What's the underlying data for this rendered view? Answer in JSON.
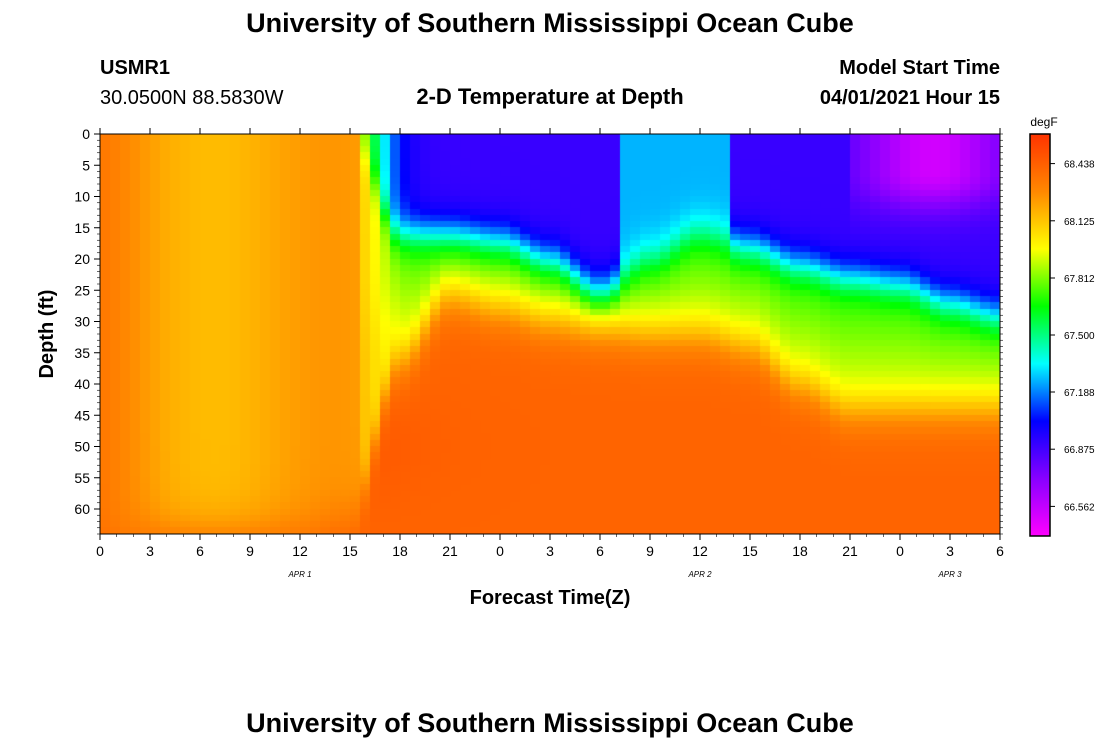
{
  "page": {
    "top_title": "University of Southern Mississippi Ocean Cube",
    "bottom_title": "University of Southern Mississippi Ocean Cube",
    "station_id": "USMR1",
    "station_coords": "30.0500N  88.5830W",
    "plot_title": "2-D Temperature at Depth",
    "model_start_label": "Model Start Time",
    "model_start_value": "04/01/2021 Hour 15"
  },
  "chart_data": {
    "type": "heatmap",
    "title": "2-D Temperature at Depth",
    "xlabel": "Forecast Time(Z)",
    "ylabel": "Depth (ft)",
    "x_range_hours_from_apr1_00z": [
      0,
      54
    ],
    "xlim_hours": [
      0,
      54
    ],
    "x_tick_labels": [
      "0",
      "3",
      "6",
      "9",
      "12",
      "15",
      "18",
      "21",
      "0",
      "3",
      "6",
      "9",
      "12",
      "15",
      "18",
      "21",
      "0",
      "3",
      "6"
    ],
    "date_labels": [
      {
        "text": "APR 1",
        "at_hour": 12
      },
      {
        "text": "APR 2",
        "at_hour": 36
      },
      {
        "text": "APR 3",
        "at_hour": 51
      }
    ],
    "ylim": [
      0,
      64
    ],
    "y_ticks": [
      0,
      5,
      10,
      15,
      20,
      25,
      30,
      35,
      40,
      45,
      50,
      55,
      60
    ],
    "colorbar": {
      "unit": "degF",
      "range": [
        66.4,
        68.6
      ],
      "tick_values": [
        68.438,
        68.125,
        67.812,
        67.5,
        67.188,
        66.875,
        66.562
      ],
      "tick_labels": [
        "68.438",
        "68.125",
        "67.812",
        "67.500",
        "67.188",
        "66.875",
        "66.562"
      ],
      "colors_low_to_high": [
        "#ff00ff",
        "#8800ff",
        "#0000ff",
        "#00ffff",
        "#00ff00",
        "#ffff00",
        "#ff8800",
        "#ff3300"
      ]
    },
    "grid": false,
    "approx_field_description_hours": [
      0,
      3,
      6,
      9,
      12,
      15,
      18,
      21,
      24,
      27,
      30,
      33,
      36,
      39,
      42,
      45,
      48,
      51,
      54
    ],
    "approx_mixed_layer_depth_ft": [
      64,
      64,
      64,
      64,
      64,
      62,
      36,
      26,
      28,
      30,
      31,
      32,
      32,
      34,
      40,
      44,
      44,
      44,
      44
    ],
    "approx_cold_layer_bottom_ft": [
      0,
      0,
      0,
      0,
      0,
      0,
      16,
      16,
      17,
      20,
      25,
      20,
      16,
      18,
      21,
      23,
      24,
      27,
      29
    ]
  }
}
